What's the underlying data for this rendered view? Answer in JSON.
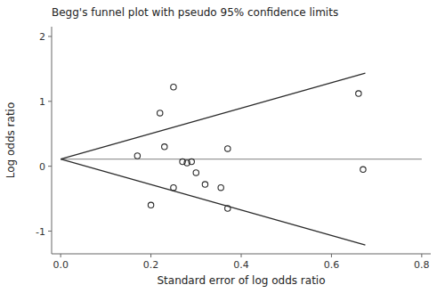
{
  "chart_data": {
    "type": "scatter",
    "title": "Begg's funnel plot with pseudo 95% confidence limits",
    "x_label": "Standard error of log odds ratio",
    "y_label": "Log odds ratio",
    "xlim": [
      -0.02,
      0.82
    ],
    "ylim": [
      -1.35,
      2.15
    ],
    "xticks": [
      {
        "value": 0,
        "label": "0.0"
      },
      0.2,
      0.4,
      0.6,
      0.8
    ],
    "yticks": [
      -1,
      0,
      1,
      2
    ],
    "grid": false,
    "series": [
      {
        "type": "line",
        "color": "#999999",
        "x": [
          0,
          0.8
        ],
        "values": [
          0.11,
          0.11
        ]
      },
      {
        "type": "line",
        "color": "#2a2a2a",
        "x": [
          0,
          0.675
        ],
        "values": [
          0.11,
          1.433
        ]
      },
      {
        "type": "line",
        "color": "#2a2a2a",
        "x": [
          0,
          0.675
        ],
        "values": [
          0.11,
          -1.213
        ]
      },
      {
        "type": "scatter",
        "color": "#2a2a2a",
        "marker": "open-circle",
        "x": [
          0.17,
          0.23,
          0.25,
          0.22,
          0.27,
          0.29,
          0.28,
          0.3,
          0.32,
          0.37,
          0.2,
          0.25,
          0.355,
          0.37,
          0.66,
          0.67
        ],
        "values": [
          0.16,
          0.3,
          1.22,
          0.82,
          0.07,
          0.07,
          0.05,
          -0.1,
          -0.28,
          0.27,
          -0.6,
          -0.33,
          -0.33,
          -0.65,
          1.12,
          -0.05
        ]
      }
    ]
  }
}
